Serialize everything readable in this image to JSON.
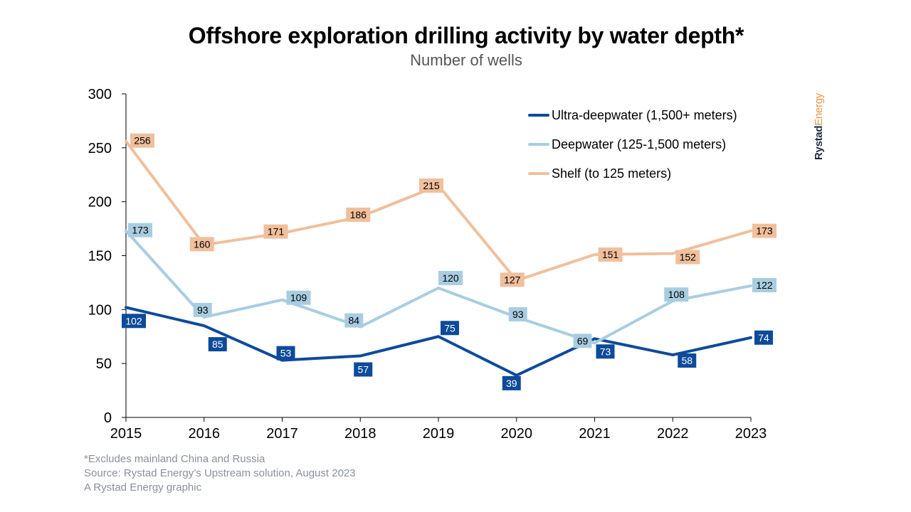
{
  "chart_data": {
    "type": "line",
    "title": "Offshore exploration drilling activity by water depth*",
    "subtitle": "Number of wells",
    "x": [
      "2015",
      "2016",
      "2017",
      "2018",
      "2019",
      "2020",
      "2021",
      "2022",
      "2023"
    ],
    "ylim": [
      0,
      300
    ],
    "yticks": [
      "0",
      "50",
      "100",
      "150",
      "200",
      "250",
      "300"
    ],
    "grid": false,
    "legend_position": "top-right",
    "series": [
      {
        "name": "Ultra-deepwater (1,500+ meters)",
        "color": "#0d4a9a",
        "label_text_color": "#ffffff",
        "values": [
          102,
          85,
          53,
          57,
          75,
          39,
          73,
          58,
          74
        ]
      },
      {
        "name": "Deepwater (125-1,500 meters)",
        "color": "#a8cde0",
        "label_text_color": "#000000",
        "values": [
          173,
          93,
          109,
          84,
          120,
          93,
          69,
          108,
          122
        ]
      },
      {
        "name": "Shelf (to 125 meters)",
        "color": "#f0bf9c",
        "label_text_color": "#000000",
        "values": [
          256,
          160,
          171,
          186,
          215,
          127,
          151,
          152,
          173
        ]
      }
    ]
  },
  "footnotes": {
    "note": "*Excludes mainland China and Russia",
    "source": "Source: Rystad Energy’s Upstream solution, August 2023",
    "credit": "A Rystad Energy graphic"
  },
  "brand": {
    "part1": "Rystad",
    "part2": "Energy"
  }
}
